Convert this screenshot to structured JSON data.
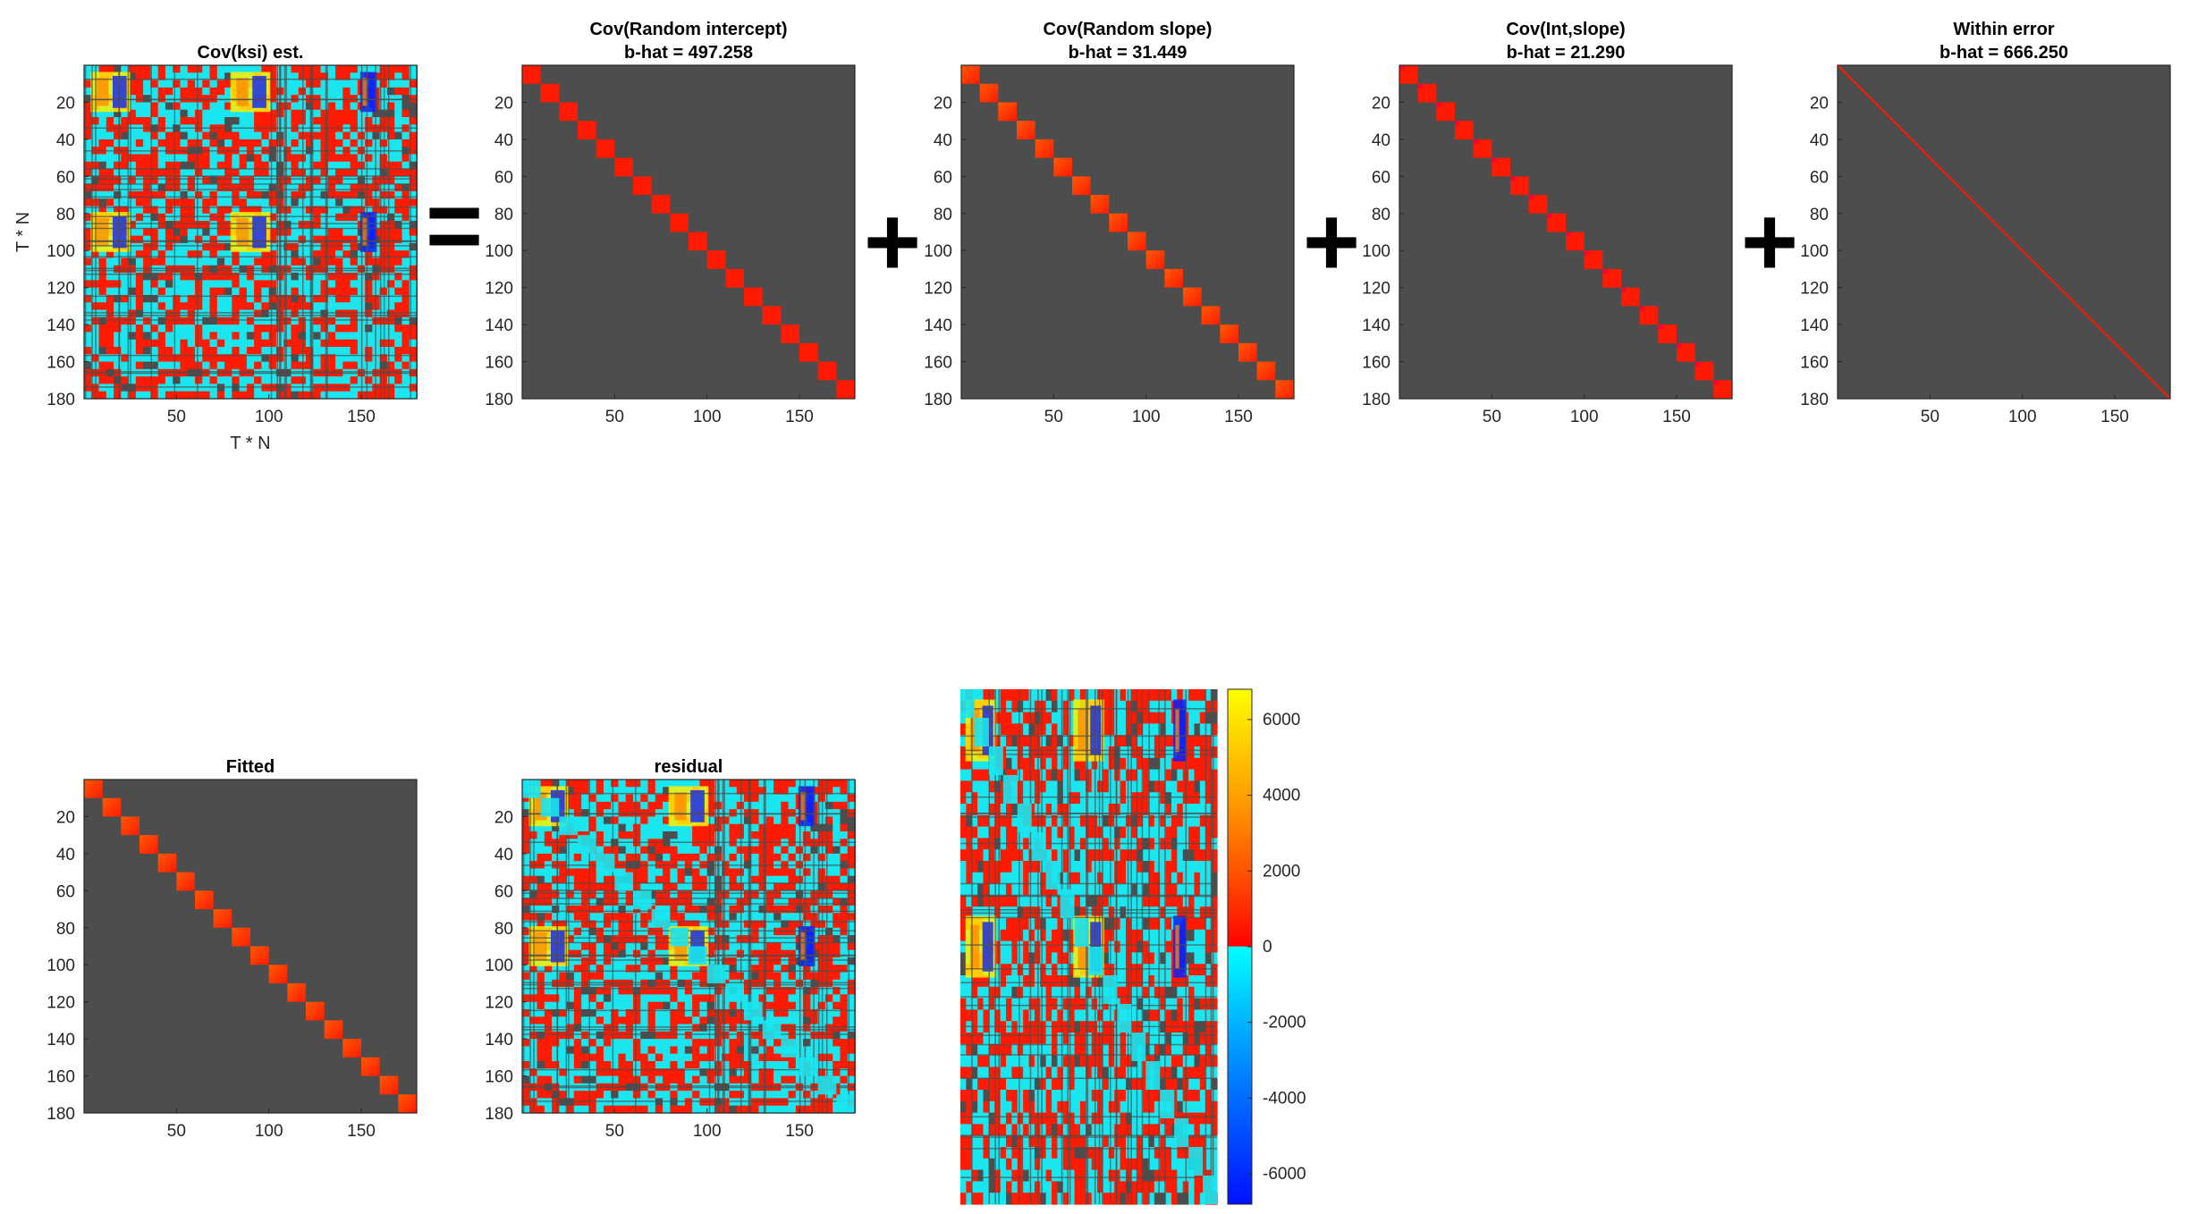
{
  "figure": {
    "colorbar_ticks": [
      6000,
      4000,
      2000,
      0,
      -2000,
      -4000,
      -6000
    ],
    "operators": [
      "=",
      "+",
      "+",
      "+"
    ]
  },
  "chart_data": [
    {
      "type": "heatmap",
      "title_lines": [
        "Cov(ksi) est."
      ],
      "xlabel": "T * N",
      "ylabel": "T * N",
      "xticks": [
        50,
        100,
        150
      ],
      "yticks": [
        20,
        40,
        60,
        80,
        100,
        120,
        140,
        160,
        180
      ],
      "size": 180,
      "clim": [
        -6800,
        6800
      ],
      "colormap": "jet-like (blue, cyan, red, orange, yellow)",
      "pattern": "dense full covariance with strong banded structure"
    },
    {
      "type": "heatmap",
      "title_lines": [
        "Cov(Random intercept)",
        "b-hat = 497.258"
      ],
      "b_hat": 497.258,
      "xticks": [
        50,
        100,
        150
      ],
      "yticks": [
        20,
        40,
        60,
        80,
        100,
        120,
        140,
        160,
        180
      ],
      "size": 180,
      "block_size": 10,
      "background": "#4d4d4d",
      "pattern": "block diagonal, uniform blocks"
    },
    {
      "type": "heatmap",
      "title_lines": [
        "Cov(Random slope)",
        "b-hat = 31.449"
      ],
      "b_hat": 31.449,
      "xticks": [
        50,
        100,
        150
      ],
      "yticks": [
        20,
        40,
        60,
        80,
        100,
        120,
        140,
        160,
        180
      ],
      "size": 180,
      "block_size": 10,
      "background": "#4d4d4d",
      "pattern": "block diagonal, increasing within block"
    },
    {
      "type": "heatmap",
      "title_lines": [
        "Cov(Int,slope)",
        "b-hat = 21.290"
      ],
      "b_hat": 21.29,
      "xticks": [
        50,
        100,
        150
      ],
      "yticks": [
        20,
        40,
        60,
        80,
        100,
        120,
        140,
        160,
        180
      ],
      "size": 180,
      "block_size": 10,
      "background": "#4d4d4d",
      "pattern": "block diagonal"
    },
    {
      "type": "heatmap",
      "title_lines": [
        "Within error",
        "b-hat = 666.250"
      ],
      "b_hat": 666.25,
      "xticks": [
        50,
        100,
        150
      ],
      "yticks": [
        20,
        40,
        60,
        80,
        100,
        120,
        140,
        160,
        180
      ],
      "size": 180,
      "background": "#4d4d4d",
      "pattern": "identity diagonal"
    },
    {
      "type": "heatmap",
      "title_lines": [
        "Fitted"
      ],
      "xticks": [
        50,
        100,
        150
      ],
      "yticks": [
        20,
        40,
        60,
        80,
        100,
        120,
        140,
        160,
        180
      ],
      "size": 180,
      "block_size": 10,
      "background": "#4d4d4d",
      "pattern": "block diagonal"
    },
    {
      "type": "heatmap",
      "title_lines": [
        "residual"
      ],
      "xticks": [
        50,
        100,
        150
      ],
      "yticks": [
        20,
        40,
        60,
        80,
        100,
        120,
        140,
        160,
        180
      ],
      "size": 180,
      "pattern": "dense, like Cov(ksi) est. with diagonal blocks removed"
    },
    {
      "type": "heatmap",
      "title_lines": [],
      "size": 180,
      "colorbar": true,
      "pattern": "dense residual, enlarged with colorbar"
    }
  ]
}
